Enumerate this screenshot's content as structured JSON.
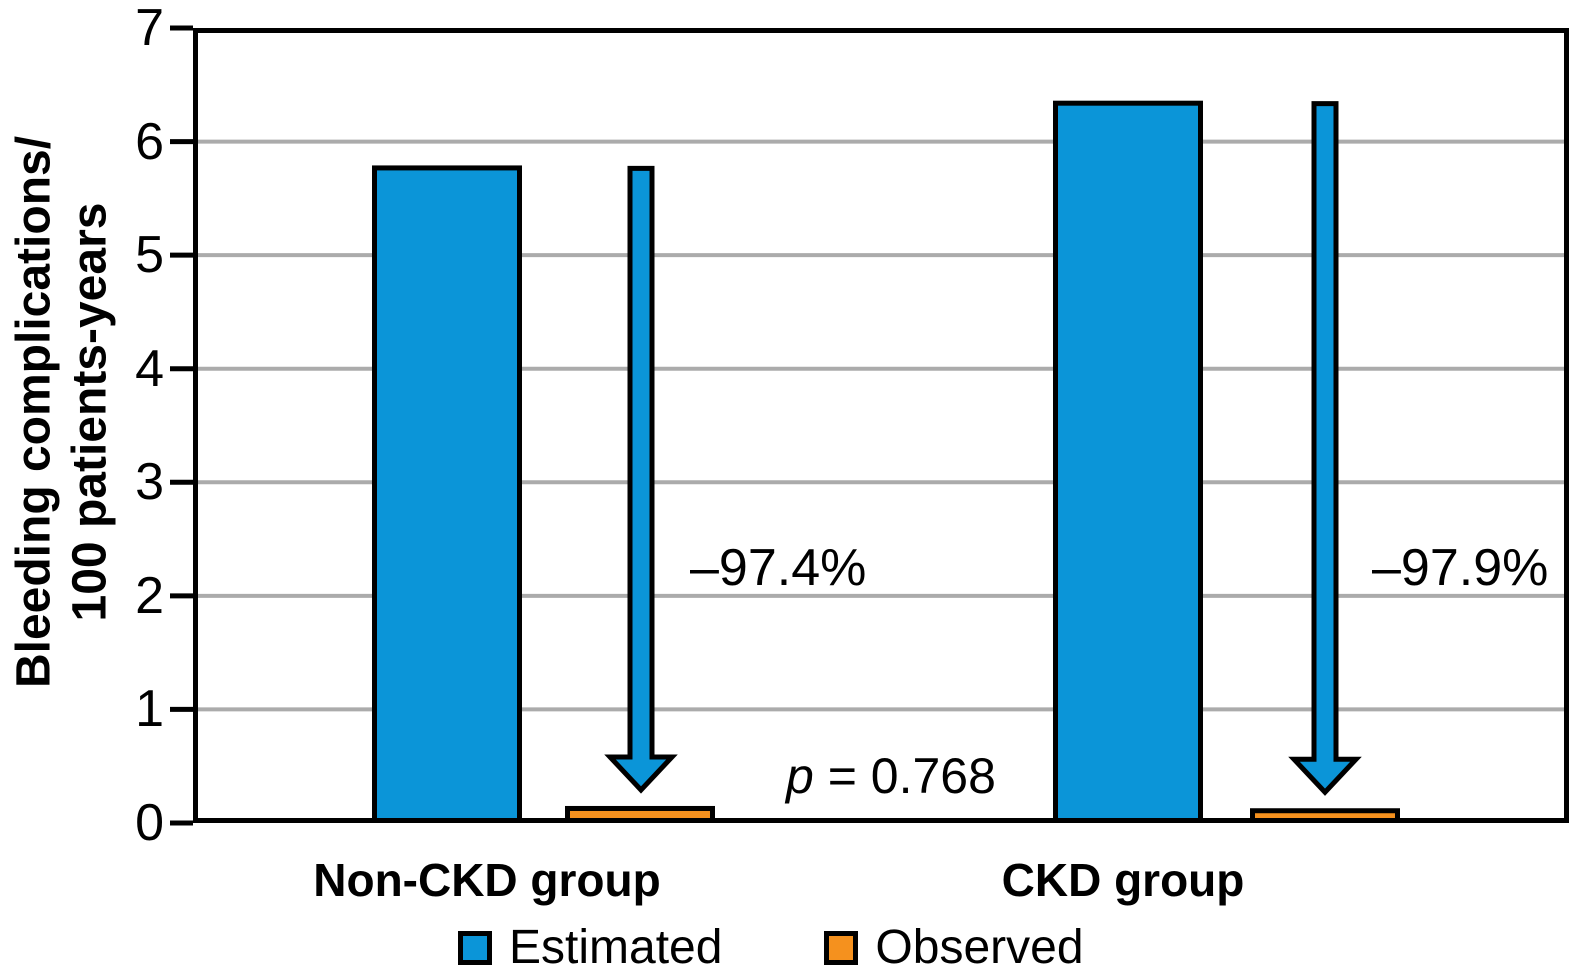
{
  "chart_data": {
    "type": "bar",
    "title": "",
    "ylabel": "Bleeding complications/ 100 patients-years",
    "ylabel_lines": [
      "Bleeding complications/",
      "100 patients-years"
    ],
    "categories": [
      "Non-CKD group",
      "CKD group"
    ],
    "series": [
      {
        "name": "Estimated",
        "color": "#0b95d8",
        "values": [
          5.79,
          6.36
        ]
      },
      {
        "name": "Observed",
        "color": "#f5911e",
        "values": [
          0.15,
          0.13
        ]
      }
    ],
    "ylim": [
      0,
      7
    ],
    "yticks": [
      "0",
      "1",
      "2",
      "3",
      "4",
      "5",
      "6",
      "7"
    ],
    "grid": true,
    "legend_position": "bottom",
    "annotations": {
      "reduction_labels": [
        "–97.4%",
        "–97.9%"
      ],
      "p_symbol": "p",
      "p_rest": " = 0.768"
    },
    "colors": {
      "estimated": "#0b95d8",
      "observed": "#f5911e",
      "arrow": "#0b95d8",
      "gridline": "#ababab",
      "axis": "#000000"
    }
  }
}
